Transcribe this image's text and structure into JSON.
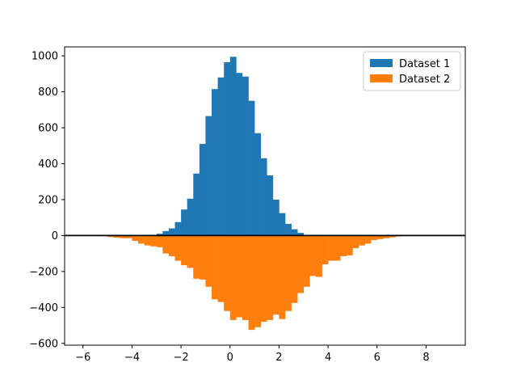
{
  "chart_data": {
    "type": "bar",
    "title": "",
    "xlabel": "",
    "ylabel": "",
    "xlim": [
      -6.75,
      9.6
    ],
    "ylim": [
      -610,
      1050
    ],
    "bin_width": 0.25,
    "x_ticks": [
      -6,
      -4,
      -2,
      0,
      2,
      4,
      6,
      8
    ],
    "y_ticks": [
      -600,
      -400,
      -200,
      0,
      200,
      400,
      600,
      800,
      1000
    ],
    "legend_position": "upper-right",
    "grid": false,
    "zero_line_color": "#000000",
    "series": [
      {
        "name": "Dataset 1",
        "color": "#1f77b4",
        "bins": [
          [
            -3.25,
            3
          ],
          [
            -3.0,
            10
          ],
          [
            -2.75,
            25
          ],
          [
            -2.5,
            40
          ],
          [
            -2.25,
            75
          ],
          [
            -2.0,
            145
          ],
          [
            -1.75,
            205
          ],
          [
            -1.5,
            345
          ],
          [
            -1.25,
            510
          ],
          [
            -1.0,
            665
          ],
          [
            -0.75,
            815
          ],
          [
            -0.5,
            880
          ],
          [
            -0.25,
            965
          ],
          [
            0.0,
            995
          ],
          [
            0.25,
            905
          ],
          [
            0.5,
            885
          ],
          [
            0.75,
            750
          ],
          [
            1.0,
            570
          ],
          [
            1.25,
            430
          ],
          [
            1.5,
            335
          ],
          [
            1.75,
            200
          ],
          [
            2.0,
            125
          ],
          [
            2.25,
            65
          ],
          [
            2.5,
            35
          ],
          [
            2.75,
            15
          ],
          [
            3.0,
            4
          ]
        ]
      },
      {
        "name": "Dataset 2",
        "color": "#ff7f0e",
        "bins": [
          [
            -5.25,
            -3
          ],
          [
            -5.0,
            -8
          ],
          [
            -4.75,
            -12
          ],
          [
            -4.5,
            -15
          ],
          [
            -4.25,
            -15
          ],
          [
            -4.0,
            -30
          ],
          [
            -3.75,
            -45
          ],
          [
            -3.5,
            -55
          ],
          [
            -3.25,
            -60
          ],
          [
            -3.0,
            -65
          ],
          [
            -2.75,
            -100
          ],
          [
            -2.5,
            -115
          ],
          [
            -2.25,
            -140
          ],
          [
            -2.0,
            -165
          ],
          [
            -1.75,
            -180
          ],
          [
            -1.5,
            -240
          ],
          [
            -1.25,
            -245
          ],
          [
            -1.0,
            -285
          ],
          [
            -0.75,
            -355
          ],
          [
            -0.5,
            -370
          ],
          [
            -0.25,
            -420
          ],
          [
            0.0,
            -470
          ],
          [
            0.25,
            -455
          ],
          [
            0.5,
            -470
          ],
          [
            0.75,
            -525
          ],
          [
            1.0,
            -510
          ],
          [
            1.25,
            -480
          ],
          [
            1.5,
            -470
          ],
          [
            1.75,
            -440
          ],
          [
            2.0,
            -465
          ],
          [
            2.25,
            -420
          ],
          [
            2.5,
            -375
          ],
          [
            2.75,
            -320
          ],
          [
            3.0,
            -285
          ],
          [
            3.25,
            -225
          ],
          [
            3.5,
            -230
          ],
          [
            3.75,
            -160
          ],
          [
            4.0,
            -140
          ],
          [
            4.25,
            -140
          ],
          [
            4.5,
            -115
          ],
          [
            4.75,
            -110
          ],
          [
            5.0,
            -70
          ],
          [
            5.25,
            -55
          ],
          [
            5.5,
            -45
          ],
          [
            5.75,
            -25
          ],
          [
            6.0,
            -20
          ],
          [
            6.25,
            -15
          ],
          [
            6.5,
            -10
          ],
          [
            6.75,
            -5
          ]
        ]
      }
    ]
  }
}
